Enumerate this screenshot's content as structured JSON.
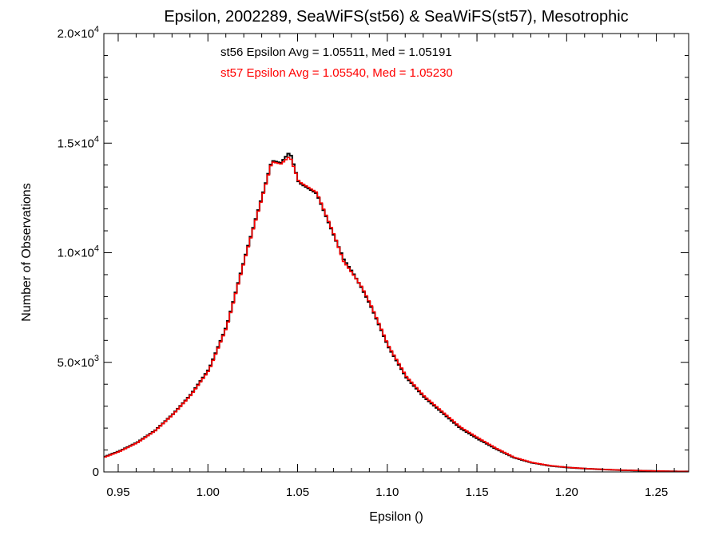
{
  "chart_data": {
    "type": "line",
    "title": "Epsilon, 2002289, SeaWiFS(st56) & SeaWiFS(st57), Mesotrophic",
    "xlabel": "Epsilon ()",
    "ylabel": "Number of Observations",
    "xlim": [
      0.942,
      1.268
    ],
    "ylim": [
      0,
      20000
    ],
    "grid": false,
    "x_ticks": [
      {
        "value": 0.95,
        "label": "0.95"
      },
      {
        "value": 1.0,
        "label": "1.00"
      },
      {
        "value": 1.05,
        "label": "1.05"
      },
      {
        "value": 1.1,
        "label": "1.10"
      },
      {
        "value": 1.15,
        "label": "1.15"
      },
      {
        "value": 1.2,
        "label": "1.20"
      },
      {
        "value": 1.25,
        "label": "1.25"
      }
    ],
    "y_ticks": [
      {
        "value": 0,
        "mant": "0",
        "exp": ""
      },
      {
        "value": 5000,
        "mant": "5.0×10",
        "exp": "3"
      },
      {
        "value": 10000,
        "mant": "1.0×10",
        "exp": "4"
      },
      {
        "value": 15000,
        "mant": "1.5×10",
        "exp": "4"
      },
      {
        "value": 20000,
        "mant": "2.0×10",
        "exp": "4"
      }
    ],
    "annotations": [
      {
        "text": "st56 Epsilon Avg = 1.05511, Med = 1.05191",
        "color": "#000000"
      },
      {
        "text": "st57 Epsilon Avg = 1.05540, Med = 1.05230",
        "color": "#ff0000"
      }
    ],
    "series": [
      {
        "color": "#000000",
        "x": [
          0.942,
          0.95,
          0.96,
          0.97,
          0.98,
          0.99,
          1.0,
          1.01,
          1.02,
          1.03,
          1.035,
          1.04,
          1.045,
          1.05,
          1.06,
          1.07,
          1.075,
          1.08,
          1.085,
          1.09,
          1.1,
          1.11,
          1.12,
          1.13,
          1.14,
          1.15,
          1.16,
          1.17,
          1.18,
          1.19,
          1.2,
          1.21,
          1.22,
          1.23,
          1.24,
          1.25,
          1.26,
          1.268
        ],
        "y": [
          700,
          950,
          1350,
          1900,
          2650,
          3550,
          4700,
          6700,
          9800,
          12700,
          14200,
          14100,
          14600,
          13200,
          12700,
          10700,
          9700,
          9100,
          8400,
          7600,
          5700,
          4300,
          3400,
          2700,
          2000,
          1500,
          1050,
          650,
          420,
          280,
          200,
          150,
          110,
          80,
          60,
          40,
          25,
          20
        ]
      },
      {
        "color": "#ff0000",
        "x": [
          0.942,
          0.95,
          0.96,
          0.97,
          0.98,
          0.99,
          1.0,
          1.01,
          1.02,
          1.03,
          1.035,
          1.04,
          1.045,
          1.05,
          1.06,
          1.07,
          1.075,
          1.08,
          1.085,
          1.09,
          1.1,
          1.11,
          1.12,
          1.13,
          1.14,
          1.15,
          1.16,
          1.17,
          1.18,
          1.19,
          1.2,
          1.21,
          1.22,
          1.23,
          1.24,
          1.25,
          1.26,
          1.268
        ],
        "y": [
          680,
          930,
          1330,
          1880,
          2630,
          3520,
          4650,
          6650,
          9750,
          12650,
          14150,
          14050,
          14400,
          13250,
          12750,
          10750,
          9600,
          9050,
          8450,
          7650,
          5750,
          4350,
          3450,
          2750,
          2050,
          1550,
          1080,
          670,
          430,
          290,
          205,
          155,
          115,
          82,
          62,
          42,
          27,
          20
        ]
      }
    ]
  }
}
